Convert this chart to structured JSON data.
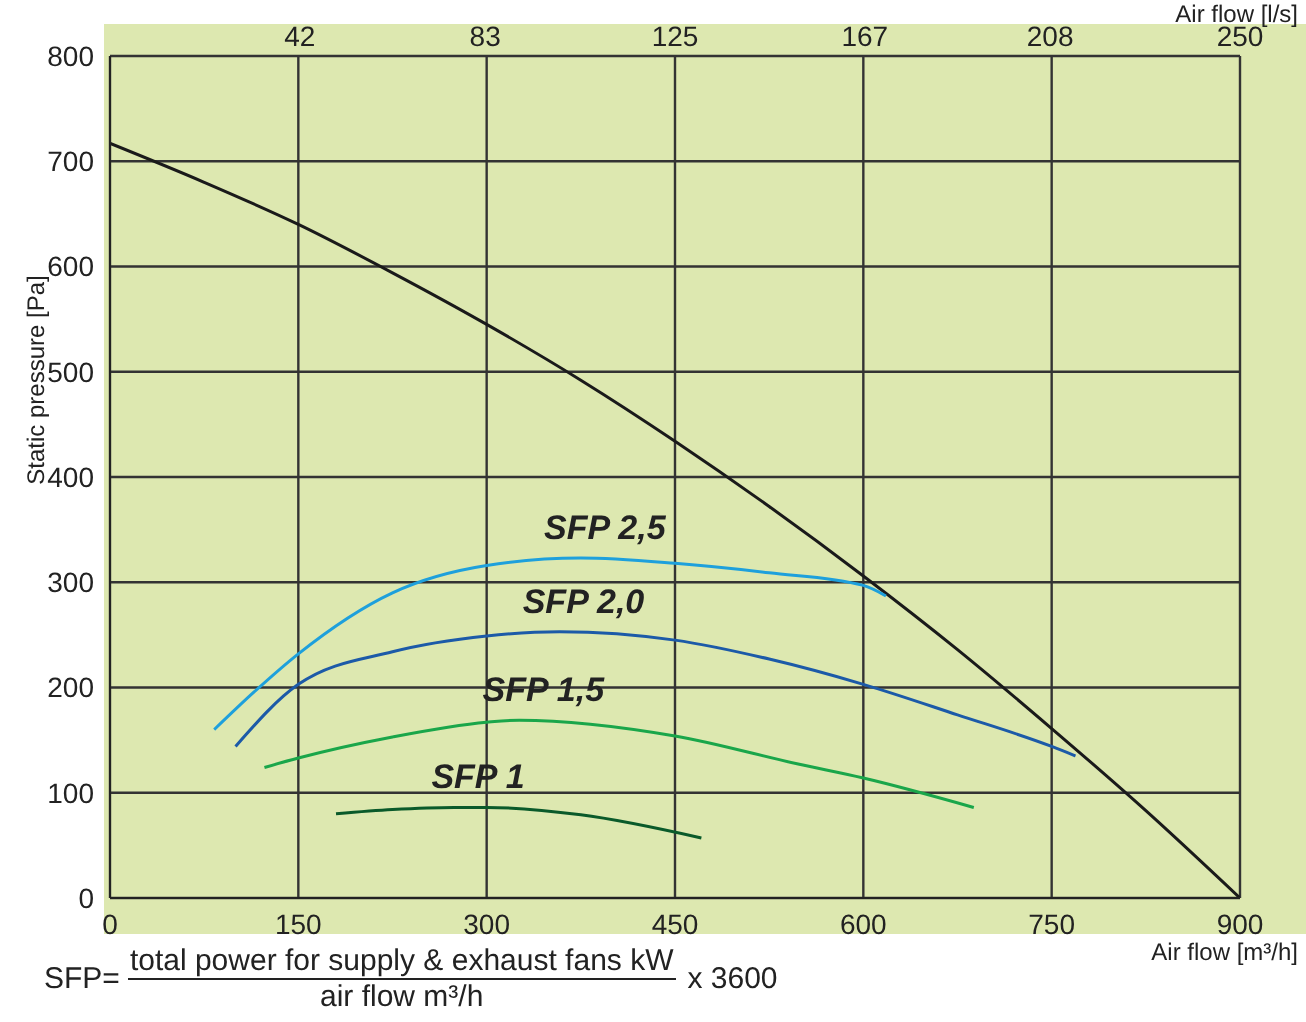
{
  "chart_data": {
    "type": "line",
    "xlabel": "Air flow [m³/h]",
    "ylabel": "Static pressure [Pa]",
    "x2label": "Air flow [l/s]",
    "xlim": [
      0,
      900
    ],
    "xticks": [
      0,
      150,
      300,
      450,
      600,
      750,
      900
    ],
    "ylim": [
      0,
      800
    ],
    "yticks": [
      0,
      100,
      200,
      300,
      400,
      500,
      600,
      700,
      800
    ],
    "x2lim": [
      0,
      250
    ],
    "x2ticks": [
      42,
      83,
      125,
      167,
      208,
      250
    ],
    "grid": true,
    "series": [
      {
        "color": "#1a1a1a",
        "x": [
          0,
          75,
          150,
          225,
          300,
          375,
          450,
          525,
          600,
          675,
          750,
          825,
          900
        ],
        "values": [
          717,
          680,
          640,
          594,
          545,
          492,
          434,
          372,
          306,
          236,
          161,
          83,
          0
        ]
      },
      {
        "name": "SFP 2,5",
        "color": "#1ea0dc",
        "x": [
          83,
          115,
          150,
          225,
          300,
          375,
          450,
          525,
          600,
          618
        ],
        "values": [
          160,
          196,
          232,
          290,
          316,
          323,
          318,
          309,
          297,
          287
        ]
      },
      {
        "name": "SFP 2,0",
        "color": "#1c5aa8",
        "x": [
          100,
          150,
          225,
          300,
          358,
          450,
          525,
          600,
          675,
          750,
          769
        ],
        "values": [
          144,
          203,
          234,
          249,
          253,
          245,
          227,
          203,
          174,
          144,
          135
        ]
      },
      {
        "name": "SFP 1,5",
        "color": "#1aa64a",
        "x": [
          123,
          150,
          225,
          300,
          326,
          450,
          549,
          600,
          688
        ],
        "values": [
          124,
          133,
          153,
          167,
          169,
          154,
          127,
          114,
          86
        ]
      },
      {
        "name": "SFP 1",
        "color": "#0a5a2a",
        "x": [
          180,
          225,
          274,
          300,
          375,
          471
        ],
        "values": [
          80,
          84,
          86,
          86,
          79,
          57
        ]
      }
    ],
    "annotations": [
      "SFP=",
      "total power for supply & exhaust fans kW",
      "air flow m³/h",
      "x 3600"
    ]
  }
}
